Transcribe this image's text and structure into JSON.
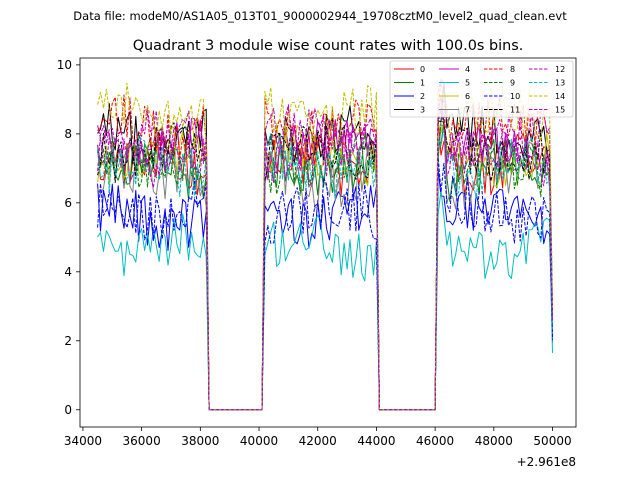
{
  "header": {
    "file_label": "Data file: modeM0/AS1A05_013T01_9000002944_19708cztM0_level2_quad_clean.evt"
  },
  "chart_data": {
    "type": "line",
    "title": "Quadrant 3 module wise count rates with 100.0s bins.",
    "xlabel": "",
    "ylabel": "",
    "x_offset_label": "+2.961e8",
    "xlim": [
      33900,
      50800
    ],
    "ylim": [
      -0.5,
      10.2
    ],
    "x_ticks": [
      34000,
      36000,
      38000,
      40000,
      42000,
      44000,
      46000,
      48000,
      50000
    ],
    "x_tick_labels": [
      "34000",
      "36000",
      "38000",
      "40000",
      "42000",
      "44000",
      "46000",
      "48000",
      "50000"
    ],
    "y_ticks": [
      0,
      2,
      4,
      6,
      8,
      10
    ],
    "y_tick_labels": [
      "0",
      "2",
      "4",
      "6",
      "8",
      "10"
    ],
    "bin_seconds": 100,
    "x_start": 34500,
    "x_end": 50000,
    "data_segments": [
      [
        34500,
        38200
      ],
      [
        40200,
        44000
      ],
      [
        46100,
        50000
      ]
    ],
    "legend": {
      "position": "top-right",
      "columns": 4
    },
    "series": [
      {
        "name": "0",
        "color": "#ff0000",
        "dash": "solid",
        "level": 7.1
      },
      {
        "name": "1",
        "color": "#008000",
        "dash": "solid",
        "level": 7.0
      },
      {
        "name": "2",
        "color": "#0000ff",
        "dash": "solid",
        "level": 5.6
      },
      {
        "name": "3",
        "color": "#000000",
        "dash": "solid",
        "level": 8.0
      },
      {
        "name": "4",
        "color": "#bf00bf",
        "dash": "solid",
        "level": 7.6
      },
      {
        "name": "5",
        "color": "#00bfbf",
        "dash": "solid",
        "level": 4.7
      },
      {
        "name": "6",
        "color": "#bfbf00",
        "dash": "solid",
        "level": 7.3
      },
      {
        "name": "7",
        "color": "#808080",
        "dash": "solid",
        "level": 6.8
      },
      {
        "name": "8",
        "color": "#ff0000",
        "dash": "dashed",
        "level": 8.2
      },
      {
        "name": "9",
        "color": "#008000",
        "dash": "dashed",
        "level": 7.1
      },
      {
        "name": "10",
        "color": "#0000ff",
        "dash": "dashed",
        "level": 5.8
      },
      {
        "name": "11",
        "color": "#000000",
        "dash": "dashed",
        "level": 7.5
      },
      {
        "name": "12",
        "color": "#bf00bf",
        "dash": "dashed",
        "level": 7.9
      },
      {
        "name": "13",
        "color": "#00bfbf",
        "dash": "dashed",
        "level": 7.0
      },
      {
        "name": "14",
        "color": "#bfbf00",
        "dash": "dashed",
        "level": 8.5
      },
      {
        "name": "15",
        "color": "#bf00bf",
        "dash": "dashed",
        "level": 7.4
      }
    ]
  }
}
